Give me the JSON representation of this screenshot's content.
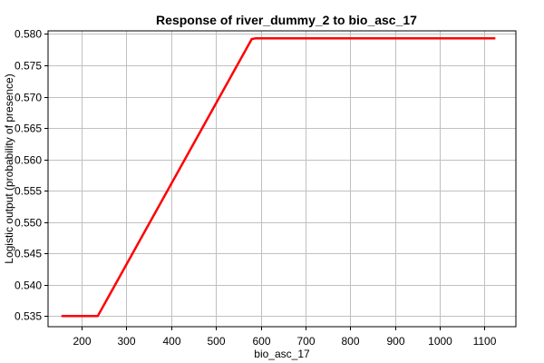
{
  "chart_data": {
    "type": "line",
    "title": "Response of river_dummy_2 to bio_asc_17",
    "xlabel": "bio_asc_17",
    "ylabel": "Logistic output (probability of presence)",
    "xlim": [
      125,
      1170
    ],
    "ylim": [
      0.5333,
      0.5805
    ],
    "xticks": [
      200,
      300,
      400,
      500,
      600,
      700,
      800,
      900,
      1000,
      1100
    ],
    "yticks": [
      0.535,
      0.54,
      0.545,
      0.55,
      0.555,
      0.56,
      0.565,
      0.57,
      0.575,
      0.58
    ],
    "ytick_labels": [
      "0.535",
      "0.540",
      "0.545",
      "0.550",
      "0.555",
      "0.560",
      "0.565",
      "0.570",
      "0.575",
      "0.580"
    ],
    "grid": true,
    "series": [
      {
        "color": "#ff0000",
        "x": [
          157,
          236,
          580,
          588,
          1122
        ],
        "y": [
          0.535,
          0.535,
          0.5792,
          0.5793,
          0.5793
        ]
      }
    ]
  }
}
